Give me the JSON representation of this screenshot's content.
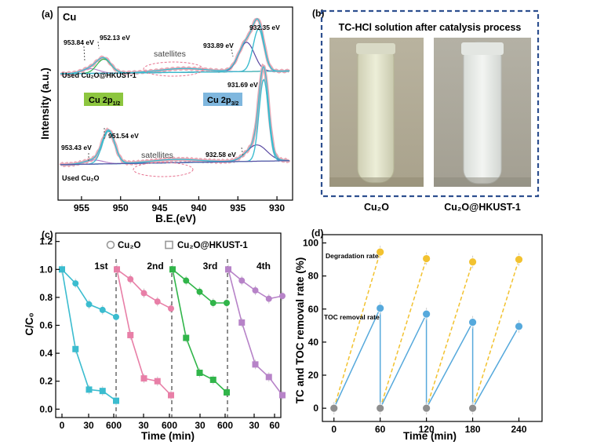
{
  "colors": {
    "cyan": "#3bbccf",
    "pink": "#e87fa7",
    "green": "#31b54a",
    "violet": "#b783c8",
    "purple": "#5a4aa2",
    "navy": "#2d4f8f",
    "yellow": "#f2c230",
    "blue_dot": "#56a9dc",
    "grey_dot": "#8e8e8e",
    "cu2p12_box": "#8dc63f",
    "cu2p32_box": "#7fb7de"
  },
  "panel_a": {
    "label": "(a)",
    "element": "Cu",
    "xlabel": "B.E.(eV)",
    "ylabel": "Intensity (a.u.)",
    "xticks": [
      "955",
      "950",
      "945",
      "940",
      "935",
      "930"
    ],
    "xlim": [
      958,
      928
    ],
    "top_spectrum_label": "Used Cu₂O@HKUST-1",
    "bottom_spectrum_label": "Used Cu₂O",
    "cu2p12_label": "Cu 2p",
    "cu2p12_sub": "1/2",
    "cu2p32_label": "Cu 2p",
    "cu2p32_sub": "3/2",
    "satellites_label": "satellites",
    "top_peaks": [
      {
        "label": "953.84 eV",
        "x": 953.84
      },
      {
        "label": "952.13 eV",
        "x": 952.13
      },
      {
        "label": "933.89 eV",
        "x": 933.89
      },
      {
        "label": "932.35 eV",
        "x": 932.35
      }
    ],
    "bottom_peaks": [
      {
        "label": "953.43 eV",
        "x": 953.43
      },
      {
        "label": "951.54 eV",
        "x": 951.54
      },
      {
        "label": "931.69 eV",
        "x": 931.69
      },
      {
        "label": "932.58 eV",
        "x": 932.58
      }
    ]
  },
  "panel_b": {
    "label": "(b)",
    "title": "TC-HCl solution after catalysis process",
    "left_caption": "Cu₂O",
    "right_caption": "Cu₂O@HKUST-1"
  },
  "panel_c": {
    "label": "(c)",
    "legend": [
      "Cu₂O",
      "Cu₂O@HKUST-1"
    ],
    "xlabel": "Time (min)",
    "ylabel": "C/C₀",
    "yticks": [
      "0.0",
      "0.2",
      "0.4",
      "0.6",
      "0.8",
      "1.0",
      "1.2"
    ],
    "ylim": [
      -0.06,
      1.26
    ],
    "xticks": [
      "0",
      "30",
      "600",
      "30",
      "600",
      "30",
      "600",
      "30",
      "60"
    ]
  },
  "panel_d": {
    "label": "(d)",
    "xlabel": "Time (min)",
    "ylabel": "TC and TOC removal rate (%)",
    "xticks": [
      "0",
      "60",
      "120",
      "180",
      "240"
    ],
    "yticks": [
      "0",
      "20",
      "40",
      "60",
      "80",
      "100"
    ],
    "xlim": [
      -15,
      270
    ],
    "ylim": [
      -8,
      105
    ],
    "degradation_label": "Degradation rate",
    "toc_label": "TOC removal rate"
  },
  "chart_data": [
    {
      "type": "line",
      "panel": "a",
      "title": "Cu",
      "xlabel": "B.E.(eV)",
      "ylabel": "Intensity (a.u.)",
      "xlim": [
        958,
        928
      ],
      "series": [
        {
          "name": "Used Cu₂O@HKUST-1",
          "peak_positions_eV": [
            953.84,
            952.13,
            933.89,
            932.35
          ]
        },
        {
          "name": "Used Cu₂O",
          "peak_positions_eV": [
            953.43,
            951.54,
            932.58,
            931.69
          ]
        }
      ]
    },
    {
      "type": "line",
      "panel": "c",
      "xlabel": "Time (min)",
      "ylabel": "C/C₀",
      "ylim": [
        -0.06,
        1.26
      ],
      "cycles": [
        "1st",
        "2nd",
        "3rd",
        "4th"
      ],
      "time_points": [
        0,
        15,
        30,
        45,
        60
      ],
      "series": [
        {
          "name": "Cu₂O",
          "cycles": [
            [
              1.0,
              0.9,
              0.75,
              0.71,
              0.66
            ],
            [
              1.0,
              0.93,
              0.83,
              0.77,
              0.72
            ],
            [
              1.0,
              0.92,
              0.84,
              0.76,
              0.76
            ],
            [
              1.0,
              0.92,
              0.85,
              0.79,
              0.81
            ]
          ]
        },
        {
          "name": "Cu₂O@HKUST-1",
          "cycles": [
            [
              1.0,
              0.43,
              0.14,
              0.13,
              0.06
            ],
            [
              1.0,
              0.53,
              0.22,
              0.2,
              0.1
            ],
            [
              1.0,
              0.51,
              0.26,
              0.21,
              0.12
            ],
            [
              1.0,
              0.62,
              0.32,
              0.23,
              0.1
            ]
          ]
        }
      ]
    },
    {
      "type": "line",
      "panel": "d",
      "xlabel": "Time (min)",
      "ylabel": "TC and TOC removal rate (%)",
      "xlim": [
        -15,
        270
      ],
      "ylim": [
        -8,
        105
      ],
      "series": [
        {
          "name": "Degradation rate",
          "points": [
            [
              0,
              0
            ],
            [
              60,
              94.5
            ],
            [
              60,
              0
            ],
            [
              120,
              90.5
            ],
            [
              120,
              0
            ],
            [
              180,
              88.5
            ],
            [
              180,
              0
            ],
            [
              240,
              90
            ]
          ]
        },
        {
          "name": "TOC removal rate",
          "points": [
            [
              0,
              0
            ],
            [
              60,
              60.5
            ],
            [
              60,
              0
            ],
            [
              120,
              57
            ],
            [
              120,
              0
            ],
            [
              180,
              52
            ],
            [
              180,
              0
            ],
            [
              240,
              49.5
            ]
          ]
        }
      ]
    }
  ]
}
